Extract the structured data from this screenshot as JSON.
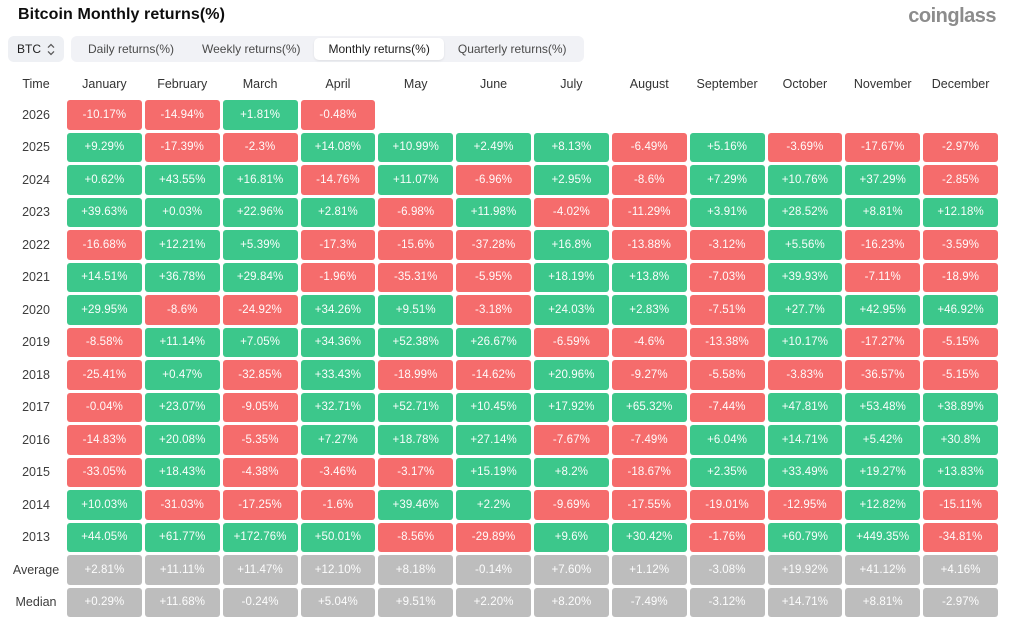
{
  "header": {
    "title": "Bitcoin Monthly returns(%)",
    "logo": "coinglass"
  },
  "toolbar": {
    "symbol": "BTC",
    "tabs": [
      {
        "label": "Daily returns(%)",
        "active": false
      },
      {
        "label": "Weekly returns(%)",
        "active": false
      },
      {
        "label": "Monthly returns(%)",
        "active": true
      },
      {
        "label": "Quarterly returns(%)",
        "active": false
      }
    ]
  },
  "chart_data": {
    "type": "heatmap",
    "title": "Bitcoin Monthly returns(%)",
    "colors": {
      "positive": "#3cc78b",
      "negative": "#f56c6c",
      "neutral": "#bdbdbd"
    },
    "columns": [
      "Time",
      "January",
      "February",
      "March",
      "April",
      "May",
      "June",
      "July",
      "August",
      "September",
      "October",
      "November",
      "December"
    ],
    "rows": [
      {
        "label": "2026",
        "neutral": false,
        "values": [
          "-10.17%",
          "-14.94%",
          "+1.81%",
          "-0.48%",
          "",
          "",
          "",
          "",
          "",
          "",
          "",
          ""
        ]
      },
      {
        "label": "2025",
        "neutral": false,
        "values": [
          "+9.29%",
          "-17.39%",
          "-2.3%",
          "+14.08%",
          "+10.99%",
          "+2.49%",
          "+8.13%",
          "-6.49%",
          "+5.16%",
          "-3.69%",
          "-17.67%",
          "-2.97%"
        ]
      },
      {
        "label": "2024",
        "neutral": false,
        "values": [
          "+0.62%",
          "+43.55%",
          "+16.81%",
          "-14.76%",
          "+11.07%",
          "-6.96%",
          "+2.95%",
          "-8.6%",
          "+7.29%",
          "+10.76%",
          "+37.29%",
          "-2.85%"
        ]
      },
      {
        "label": "2023",
        "neutral": false,
        "values": [
          "+39.63%",
          "+0.03%",
          "+22.96%",
          "+2.81%",
          "-6.98%",
          "+11.98%",
          "-4.02%",
          "-11.29%",
          "+3.91%",
          "+28.52%",
          "+8.81%",
          "+12.18%"
        ]
      },
      {
        "label": "2022",
        "neutral": false,
        "values": [
          "-16.68%",
          "+12.21%",
          "+5.39%",
          "-17.3%",
          "-15.6%",
          "-37.28%",
          "+16.8%",
          "-13.88%",
          "-3.12%",
          "+5.56%",
          "-16.23%",
          "-3.59%"
        ]
      },
      {
        "label": "2021",
        "neutral": false,
        "values": [
          "+14.51%",
          "+36.78%",
          "+29.84%",
          "-1.96%",
          "-35.31%",
          "-5.95%",
          "+18.19%",
          "+13.8%",
          "-7.03%",
          "+39.93%",
          "-7.11%",
          "-18.9%"
        ]
      },
      {
        "label": "2020",
        "neutral": false,
        "values": [
          "+29.95%",
          "-8.6%",
          "-24.92%",
          "+34.26%",
          "+9.51%",
          "-3.18%",
          "+24.03%",
          "+2.83%",
          "-7.51%",
          "+27.7%",
          "+42.95%",
          "+46.92%"
        ]
      },
      {
        "label": "2019",
        "neutral": false,
        "values": [
          "-8.58%",
          "+11.14%",
          "+7.05%",
          "+34.36%",
          "+52.38%",
          "+26.67%",
          "-6.59%",
          "-4.6%",
          "-13.38%",
          "+10.17%",
          "-17.27%",
          "-5.15%"
        ]
      },
      {
        "label": "2018",
        "neutral": false,
        "values": [
          "-25.41%",
          "+0.47%",
          "-32.85%",
          "+33.43%",
          "-18.99%",
          "-14.62%",
          "+20.96%",
          "-9.27%",
          "-5.58%",
          "-3.83%",
          "-36.57%",
          "-5.15%"
        ]
      },
      {
        "label": "2017",
        "neutral": false,
        "values": [
          "-0.04%",
          "+23.07%",
          "-9.05%",
          "+32.71%",
          "+52.71%",
          "+10.45%",
          "+17.92%",
          "+65.32%",
          "-7.44%",
          "+47.81%",
          "+53.48%",
          "+38.89%"
        ]
      },
      {
        "label": "2016",
        "neutral": false,
        "values": [
          "-14.83%",
          "+20.08%",
          "-5.35%",
          "+7.27%",
          "+18.78%",
          "+27.14%",
          "-7.67%",
          "-7.49%",
          "+6.04%",
          "+14.71%",
          "+5.42%",
          "+30.8%"
        ]
      },
      {
        "label": "2015",
        "neutral": false,
        "values": [
          "-33.05%",
          "+18.43%",
          "-4.38%",
          "-3.46%",
          "-3.17%",
          "+15.19%",
          "+8.2%",
          "-18.67%",
          "+2.35%",
          "+33.49%",
          "+19.27%",
          "+13.83%"
        ]
      },
      {
        "label": "2014",
        "neutral": false,
        "values": [
          "+10.03%",
          "-31.03%",
          "-17.25%",
          "-1.6%",
          "+39.46%",
          "+2.2%",
          "-9.69%",
          "-17.55%",
          "-19.01%",
          "-12.95%",
          "+12.82%",
          "-15.11%"
        ]
      },
      {
        "label": "2013",
        "neutral": false,
        "values": [
          "+44.05%",
          "+61.77%",
          "+172.76%",
          "+50.01%",
          "-8.56%",
          "-29.89%",
          "+9.6%",
          "+30.42%",
          "-1.76%",
          "+60.79%",
          "+449.35%",
          "-34.81%"
        ]
      },
      {
        "label": "Average",
        "neutral": true,
        "values": [
          "+2.81%",
          "+11.11%",
          "+11.47%",
          "+12.10%",
          "+8.18%",
          "-0.14%",
          "+7.60%",
          "+1.12%",
          "-3.08%",
          "+19.92%",
          "+41.12%",
          "+4.16%"
        ]
      },
      {
        "label": "Median",
        "neutral": true,
        "values": [
          "+0.29%",
          "+11.68%",
          "-0.24%",
          "+5.04%",
          "+9.51%",
          "+2.20%",
          "+8.20%",
          "-7.49%",
          "-3.12%",
          "+14.71%",
          "+8.81%",
          "-2.97%"
        ]
      }
    ]
  }
}
